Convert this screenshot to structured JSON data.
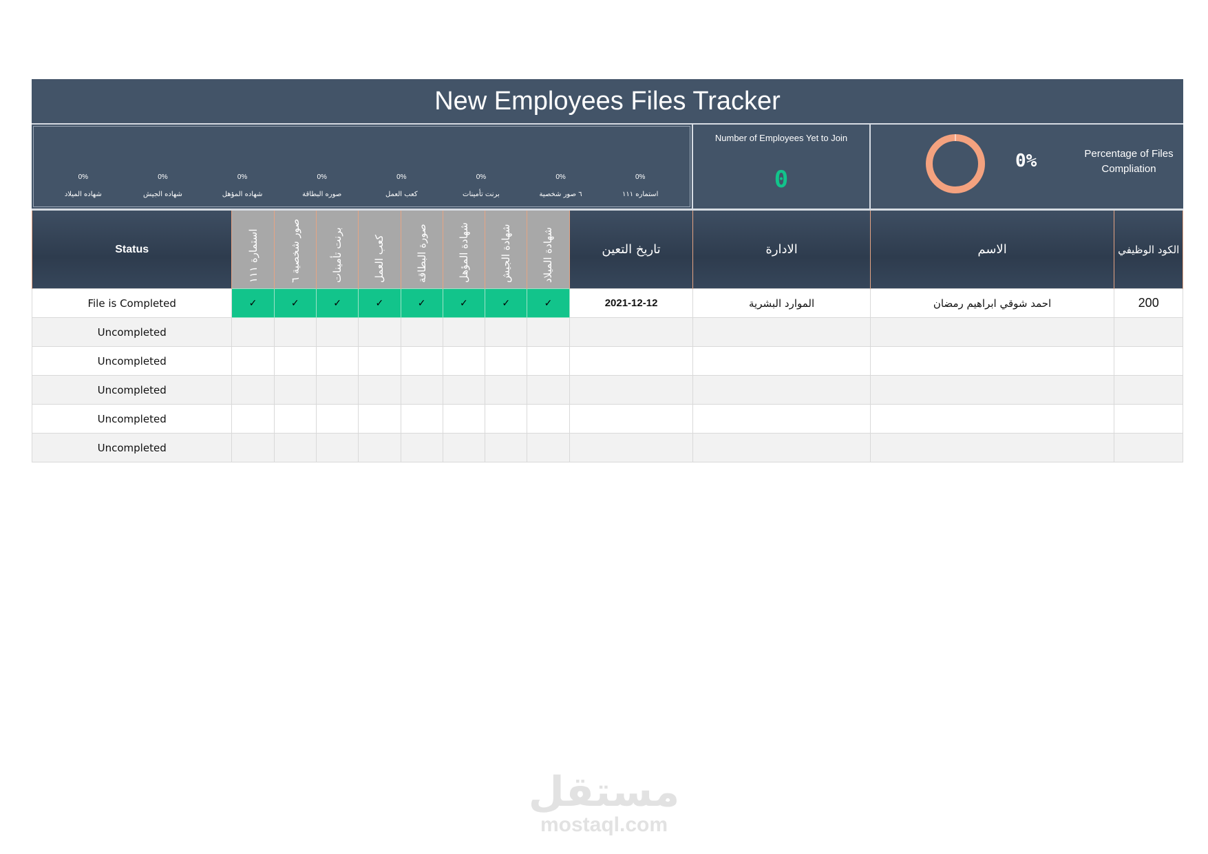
{
  "title": "New Employees Files Tracker",
  "percent_summary": [
    {
      "label": "استماره ١١١",
      "value": "0%"
    },
    {
      "label": "٦ صور شخصية",
      "value": "0%"
    },
    {
      "label": "برنت تأمينات",
      "value": "0%"
    },
    {
      "label": "كعب العمل",
      "value": "0%"
    },
    {
      "label": "صوره البطاقة",
      "value": "0%"
    },
    {
      "label": "شهاده المؤهل",
      "value": "0%"
    },
    {
      "label": "شهاده الجيش",
      "value": "0%"
    },
    {
      "label": "شهاده الميلاد",
      "value": "0%"
    }
  ],
  "employees_yet_to_join": {
    "label": "Number of Employees Yet to Join",
    "value": "0"
  },
  "files_completion": {
    "label": "Percentage of Files Compliation",
    "value": "0%",
    "fraction": 0
  },
  "colors": {
    "header_bg": "#435468",
    "check_green": "#12c48b",
    "donut": "#f4a27f",
    "doc_header": "#a8a8a8"
  },
  "table": {
    "headers": {
      "status": "Status",
      "docs": [
        "استمارة ١١١",
        "صور شخصية ٦",
        "برنت تأمينات",
        "كعب العمل",
        "صورة البطاقة",
        "شهادة المؤهل",
        "شهادة الجيش",
        "شهادة الميلاد"
      ],
      "hire_date": "تاريخ التعين",
      "department": "الادارة",
      "name": "الاسم",
      "code": "الكود الوظيفي"
    },
    "rows": [
      {
        "status": "File is Completed",
        "checks": [
          "✓",
          "✓",
          "✓",
          "✓",
          "✓",
          "✓",
          "✓",
          "✓"
        ],
        "hire_date": "2021-12-12",
        "department": "الموارد البشرية",
        "name": "احمد شوقي ابراهيم رمضان",
        "code": "200"
      },
      {
        "status": "Uncompleted",
        "checks": [
          "",
          "",
          "",
          "",
          "",
          "",
          "",
          ""
        ],
        "hire_date": "",
        "department": "",
        "name": "",
        "code": ""
      },
      {
        "status": "Uncompleted",
        "checks": [
          "",
          "",
          "",
          "",
          "",
          "",
          "",
          ""
        ],
        "hire_date": "",
        "department": "",
        "name": "",
        "code": ""
      },
      {
        "status": "Uncompleted",
        "checks": [
          "",
          "",
          "",
          "",
          "",
          "",
          "",
          ""
        ],
        "hire_date": "",
        "department": "",
        "name": "",
        "code": ""
      },
      {
        "status": "Uncompleted",
        "checks": [
          "",
          "",
          "",
          "",
          "",
          "",
          "",
          ""
        ],
        "hire_date": "",
        "department": "",
        "name": "",
        "code": ""
      },
      {
        "status": "Uncompleted",
        "checks": [
          "",
          "",
          "",
          "",
          "",
          "",
          "",
          ""
        ],
        "hire_date": "",
        "department": "",
        "name": "",
        "code": ""
      }
    ]
  },
  "watermark": {
    "arabic": "مستقل",
    "latin": "mostaql.com"
  }
}
